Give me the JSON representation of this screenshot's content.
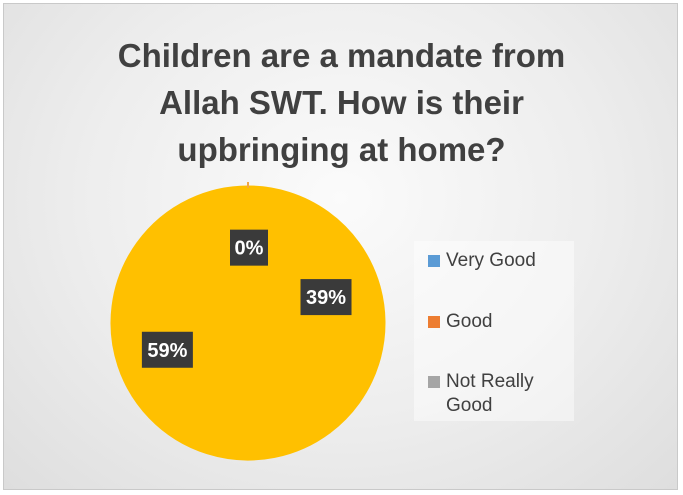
{
  "chart_data": {
    "type": "pie",
    "title": "Children are a mandate from Allah SWT. How is their upbringing at home?",
    "title_lines": [
      "Children are a mandate from",
      "Allah SWT. How is their",
      "upbringing at home?"
    ],
    "categories": [
      "Very Good",
      "Good",
      "Not Really Good"
    ],
    "values": [
      0,
      39,
      59
    ],
    "data_labels": [
      "0%",
      "39%",
      "59%"
    ],
    "legend_lines": [
      [
        "Very Good"
      ],
      [
        "Good"
      ],
      [
        "Not Really",
        "Good"
      ]
    ],
    "legend_position": "right",
    "colors": {
      "very_good": "#5b9bd5",
      "good": "#ed7d31",
      "not_really_good": "#a5a5a5",
      "pie_fill": "#ffc000",
      "label_bg": "#3a3a3a",
      "label_text": "#ffffff"
    }
  }
}
